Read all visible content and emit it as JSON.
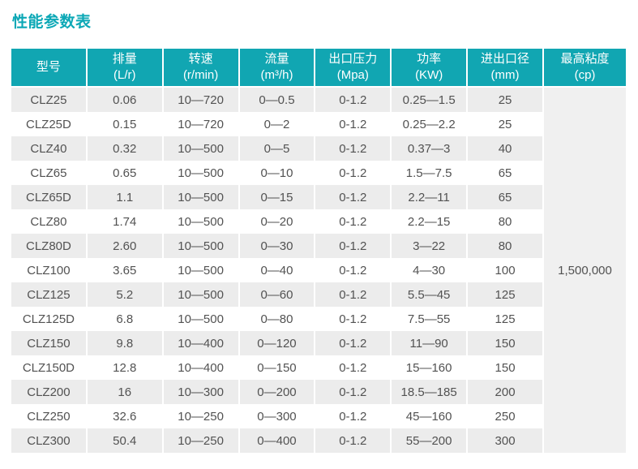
{
  "page_title": "性能参数表",
  "colors": {
    "title_teal": "#0ca8b6",
    "accent_teal": "#11a6b2",
    "row_stripe": "#ececec",
    "viscosity_bg": "#f0f0f0",
    "cell_text": "#525252"
  },
  "table": {
    "columns": [
      {
        "label": "型号",
        "unit": ""
      },
      {
        "label": "排量",
        "unit": "(L/r)"
      },
      {
        "label": "转速",
        "unit": "(r/min)"
      },
      {
        "label": "流量",
        "unit": "(m³/h)"
      },
      {
        "label": "出口压力",
        "unit": "(Mpa)"
      },
      {
        "label": "功率",
        "unit": "(KW)"
      },
      {
        "label": "进出口径",
        "unit": "(mm)"
      },
      {
        "label": "最高粘度",
        "unit": "(cp)"
      }
    ],
    "rows": [
      [
        "CLZ25",
        "0.06",
        "10—720",
        "0—0.5",
        "0-1.2",
        "0.25—1.5",
        "25"
      ],
      [
        "CLZ25D",
        "0.15",
        "10—720",
        "0—2",
        "0-1.2",
        "0.25—2.2",
        "25"
      ],
      [
        "CLZ40",
        "0.32",
        "10—500",
        "0—5",
        "0-1.2",
        "0.37—3",
        "40"
      ],
      [
        "CLZ65",
        "0.65",
        "10—500",
        "0—10",
        "0-1.2",
        "1.5—7.5",
        "65"
      ],
      [
        "CLZ65D",
        "1.1",
        "10—500",
        "0—15",
        "0-1.2",
        "2.2—11",
        "65"
      ],
      [
        "CLZ80",
        "1.74",
        "10—500",
        "0—20",
        "0-1.2",
        "2.2—15",
        "80"
      ],
      [
        "CLZ80D",
        "2.60",
        "10—500",
        "0—30",
        "0-1.2",
        "3—22",
        "80"
      ],
      [
        "CLZ100",
        "3.65",
        "10—500",
        "0—40",
        "0-1.2",
        "4—30",
        "100"
      ],
      [
        "CLZ125",
        "5.2",
        "10—500",
        "0—60",
        "0-1.2",
        "5.5—45",
        "125"
      ],
      [
        "CLZ125D",
        "6.8",
        "10—500",
        "0—80",
        "0-1.2",
        "7.5—55",
        "125"
      ],
      [
        "CLZ150",
        "9.8",
        "10—400",
        "0—120",
        "0-1.2",
        "11—90",
        "150"
      ],
      [
        "CLZ150D",
        "12.8",
        "10—400",
        "0—150",
        "0-1.2",
        "15—160",
        "150"
      ],
      [
        "CLZ200",
        "16",
        "10—300",
        "0—200",
        "0-1.2",
        "18.5—185",
        "200"
      ],
      [
        "CLZ250",
        "32.6",
        "10—250",
        "0—300",
        "0-1.2",
        "45—160",
        "250"
      ],
      [
        "CLZ300",
        "50.4",
        "10—250",
        "0—400",
        "0-1.2",
        "55—200",
        "300"
      ]
    ],
    "merged_max_viscosity": "1,500,000"
  }
}
